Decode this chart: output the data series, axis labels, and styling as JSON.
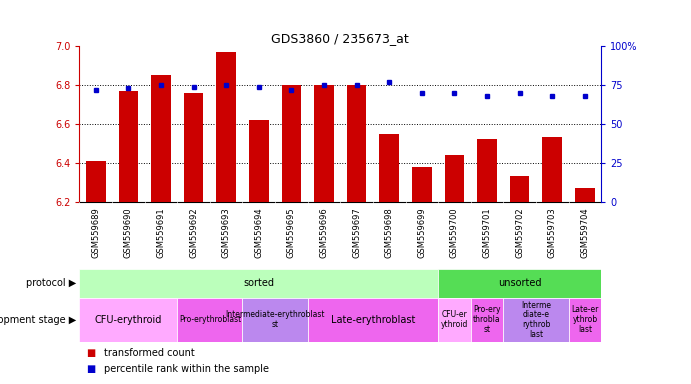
{
  "title": "GDS3860 / 235673_at",
  "samples": [
    "GSM559689",
    "GSM559690",
    "GSM559691",
    "GSM559692",
    "GSM559693",
    "GSM559694",
    "GSM559695",
    "GSM559696",
    "GSM559697",
    "GSM559698",
    "GSM559699",
    "GSM559700",
    "GSM559701",
    "GSM559702",
    "GSM559703",
    "GSM559704"
  ],
  "bar_values": [
    6.41,
    6.77,
    6.85,
    6.76,
    6.97,
    6.62,
    6.8,
    6.8,
    6.8,
    6.55,
    6.38,
    6.44,
    6.52,
    6.33,
    6.53,
    6.27
  ],
  "percentile_values": [
    72,
    73,
    75,
    74,
    75,
    74,
    72,
    75,
    75,
    77,
    70,
    70,
    68,
    70,
    68,
    68
  ],
  "bar_color": "#cc0000",
  "dot_color": "#0000cc",
  "ymin": 6.2,
  "ymax": 7.0,
  "y_ticks": [
    6.2,
    6.4,
    6.6,
    6.8,
    7.0
  ],
  "y2min": 0,
  "y2max": 100,
  "y2_ticks": [
    0,
    25,
    50,
    75,
    100
  ],
  "y2_tick_labels": [
    "0",
    "25",
    "50",
    "75",
    "100%"
  ],
  "protocol": [
    {
      "label": "sorted",
      "start": 0,
      "end": 11,
      "color": "#bbffbb"
    },
    {
      "label": "unsorted",
      "start": 11,
      "end": 16,
      "color": "#55dd55"
    }
  ],
  "dev_stages": [
    {
      "label": "CFU-erythroid",
      "start": 0,
      "end": 3,
      "color": "#ffaaff"
    },
    {
      "label": "Pro-erythroblast",
      "start": 3,
      "end": 5,
      "color": "#ee66ee"
    },
    {
      "label": "Intermediate-erythroblast\nst",
      "start": 5,
      "end": 7,
      "color": "#bb88ee"
    },
    {
      "label": "Late-erythroblast",
      "start": 7,
      "end": 11,
      "color": "#ee66ee"
    },
    {
      "label": "CFU-er\nythroid",
      "start": 11,
      "end": 12,
      "color": "#ffaaff"
    },
    {
      "label": "Pro-ery\nthrobla\nst",
      "start": 12,
      "end": 13,
      "color": "#ee66ee"
    },
    {
      "label": "Interme\ndiate-e\nrythrob\nlast",
      "start": 13,
      "end": 15,
      "color": "#bb88ee"
    },
    {
      "label": "Late-er\nythrob\nlast",
      "start": 15,
      "end": 16,
      "color": "#ee66ee"
    }
  ],
  "title_color": "#000000",
  "left_axis_color": "#cc0000",
  "right_axis_color": "#0000cc",
  "background_color": "#ffffff",
  "xticklabel_bg": "#d8d8d8",
  "grid_color": "#000000",
  "legend_items": [
    {
      "label": "transformed count",
      "color": "#cc0000"
    },
    {
      "label": "percentile rank within the sample",
      "color": "#0000cc"
    }
  ]
}
